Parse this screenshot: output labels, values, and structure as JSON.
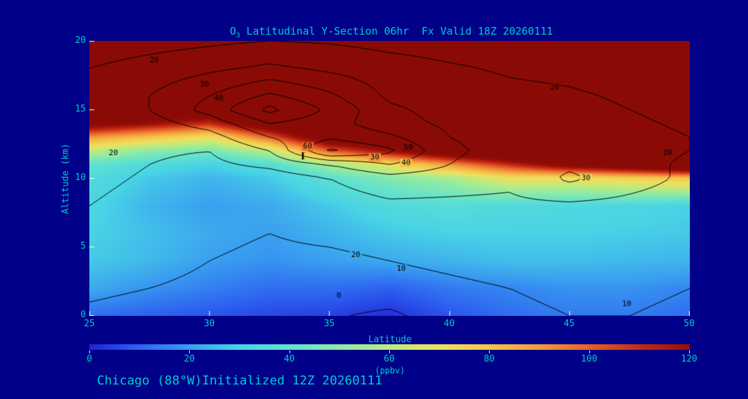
{
  "colors": {
    "background": "#000089",
    "text": "#00CCCC",
    "contour_line": "#000000",
    "tick_mark": "#FFFFFF"
  },
  "title": {
    "prefix": "O",
    "sub": "3",
    "rest": " Latitudinal Y-Section 06hr  Fx Valid 18Z 20260111"
  },
  "footer": {
    "text": "Chicago (88°W)Initialized 12Z 20260111"
  },
  "axes": {
    "x": {
      "label": "Latitude",
      "ticks": [
        25,
        30,
        35,
        40,
        45,
        50
      ]
    },
    "y": {
      "label": "Altitude (km)",
      "ticks": [
        0,
        5,
        10,
        15,
        20
      ]
    }
  },
  "colorbar": {
    "label": "(ppbv)",
    "ticks": [
      0,
      20,
      40,
      60,
      80,
      100,
      120
    ]
  },
  "colormap": [
    {
      "v": 0,
      "c": "#2121D6"
    },
    {
      "v": 10,
      "c": "#2D62F0"
    },
    {
      "v": 20,
      "c": "#3AA0F0"
    },
    {
      "v": 30,
      "c": "#49D4E6"
    },
    {
      "v": 40,
      "c": "#62E2CE"
    },
    {
      "v": 50,
      "c": "#8CEBA8"
    },
    {
      "v": 60,
      "c": "#BEEB7E"
    },
    {
      "v": 70,
      "c": "#EEE060"
    },
    {
      "v": 80,
      "c": "#F5C44B"
    },
    {
      "v": 90,
      "c": "#F29A3C"
    },
    {
      "v": 100,
      "c": "#E8602A"
    },
    {
      "v": 110,
      "c": "#C22B12"
    },
    {
      "v": 120,
      "c": "#990D07"
    },
    {
      "v": 130,
      "c": "#8A0B05"
    }
  ],
  "chart_data": {
    "type": "heatmap",
    "title": "O3 Latitudinal Y-Section 06hr Fx Valid 18Z 20260111",
    "xlabel": "Latitude",
    "ylabel": "Altitude (km)",
    "xlim": [
      25,
      50
    ],
    "ylim": [
      0,
      20
    ],
    "fill_units": "ppbv",
    "fill_range": [
      0,
      120
    ],
    "lats": [
      25,
      27.5,
      30,
      32.5,
      35,
      37.5,
      40,
      42.5,
      45,
      47.5,
      50
    ],
    "alts": [
      0,
      2,
      4,
      6,
      8,
      10,
      11,
      12,
      13,
      14,
      15,
      16,
      18,
      20
    ],
    "fill_grid": [
      [
        12,
        10,
        8,
        6,
        5,
        2,
        8,
        12,
        14,
        14,
        12
      ],
      [
        22,
        18,
        15,
        12,
        12,
        10,
        14,
        16,
        18,
        18,
        16
      ],
      [
        28,
        25,
        20,
        18,
        20,
        22,
        24,
        26,
        26,
        25,
        24
      ],
      [
        30,
        26,
        22,
        20,
        24,
        28,
        30,
        30,
        30,
        29,
        28
      ],
      [
        32,
        24,
        20,
        22,
        28,
        34,
        36,
        34,
        33,
        32,
        30
      ],
      [
        34,
        28,
        24,
        28,
        38,
        48,
        55,
        70,
        70,
        75,
        80
      ],
      [
        40,
        34,
        30,
        36,
        55,
        70,
        90,
        110,
        130,
        140,
        150
      ],
      [
        60,
        50,
        45,
        60,
        100,
        120,
        140,
        150,
        160,
        160,
        160
      ],
      [
        90,
        80,
        70,
        100,
        140,
        150,
        160,
        160,
        160,
        160,
        160
      ],
      [
        130,
        120,
        110,
        140,
        160,
        160,
        160,
        160,
        160,
        160,
        160
      ],
      [
        150,
        150,
        140,
        160,
        160,
        160,
        160,
        160,
        160,
        160,
        160
      ],
      [
        160,
        160,
        160,
        160,
        160,
        160,
        160,
        160,
        160,
        160,
        160
      ],
      [
        160,
        160,
        160,
        160,
        160,
        160,
        160,
        160,
        160,
        160,
        160
      ],
      [
        160,
        160,
        160,
        160,
        160,
        160,
        160,
        160,
        160,
        160,
        160
      ]
    ],
    "contour_levels": [
      0,
      10,
      20,
      30,
      40,
      50,
      60
    ],
    "contour_grid": [
      [
        8,
        6,
        4,
        3,
        1,
        -2,
        5,
        8,
        10,
        10,
        8
      ],
      [
        12,
        10,
        8,
        6,
        5,
        6,
        8,
        10,
        12,
        12,
        10
      ],
      [
        15,
        13,
        10,
        8,
        8,
        10,
        12,
        14,
        14,
        13,
        12
      ],
      [
        18,
        15,
        12,
        10,
        12,
        14,
        15,
        16,
        16,
        15,
        14
      ],
      [
        20,
        17,
        14,
        13,
        15,
        18,
        18,
        18,
        18,
        17,
        15
      ],
      [
        22,
        19,
        16,
        15,
        20,
        26,
        24,
        22,
        32,
        24,
        18
      ],
      [
        23,
        20,
        18,
        22,
        30,
        40,
        30,
        24,
        28,
        22,
        19
      ],
      [
        24,
        21,
        20,
        30,
        62,
        52,
        32,
        26,
        24,
        22,
        20
      ],
      [
        25,
        23,
        26,
        40,
        48,
        42,
        30,
        26,
        24,
        22,
        20
      ],
      [
        26,
        26,
        34,
        50,
        44,
        34,
        28,
        25,
        23,
        21,
        19
      ],
      [
        26,
        30,
        44,
        63,
        48,
        32,
        26,
        24,
        22,
        20,
        18
      ],
      [
        24,
        30,
        40,
        52,
        42,
        28,
        24,
        22,
        21,
        19,
        16
      ],
      [
        20,
        24,
        28,
        32,
        28,
        24,
        21,
        19,
        18,
        16,
        13
      ],
      [
        14,
        16,
        18,
        20,
        19,
        17,
        16,
        15,
        14,
        12,
        10
      ]
    ],
    "contour_labels": [
      {
        "text": "20",
        "lat": 27.7,
        "alt": 18.6
      },
      {
        "text": "30",
        "lat": 29.8,
        "alt": 16.8
      },
      {
        "text": "40",
        "lat": 30.4,
        "alt": 15.8
      },
      {
        "text": "20",
        "lat": 44.4,
        "alt": 16.6
      },
      {
        "text": "20",
        "lat": 26.0,
        "alt": 11.8
      },
      {
        "text": "60",
        "lat": 34.1,
        "alt": 12.3
      },
      {
        "text": "30",
        "lat": 36.9,
        "alt": 11.5
      },
      {
        "text": "50",
        "lat": 38.3,
        "alt": 12.2
      },
      {
        "text": "40",
        "lat": 38.2,
        "alt": 11.1
      },
      {
        "text": "30",
        "lat": 45.7,
        "alt": 10.0
      },
      {
        "text": "20",
        "lat": 49.1,
        "alt": 11.8
      },
      {
        "text": "20",
        "lat": 36.1,
        "alt": 4.4
      },
      {
        "text": "10",
        "lat": 38.0,
        "alt": 3.4
      },
      {
        "text": "0",
        "lat": 35.4,
        "alt": 1.4
      },
      {
        "text": "10",
        "lat": 47.4,
        "alt": 0.8
      }
    ],
    "markers": [
      {
        "text": "I",
        "lat": 33.9,
        "alt": 11.55
      }
    ]
  }
}
